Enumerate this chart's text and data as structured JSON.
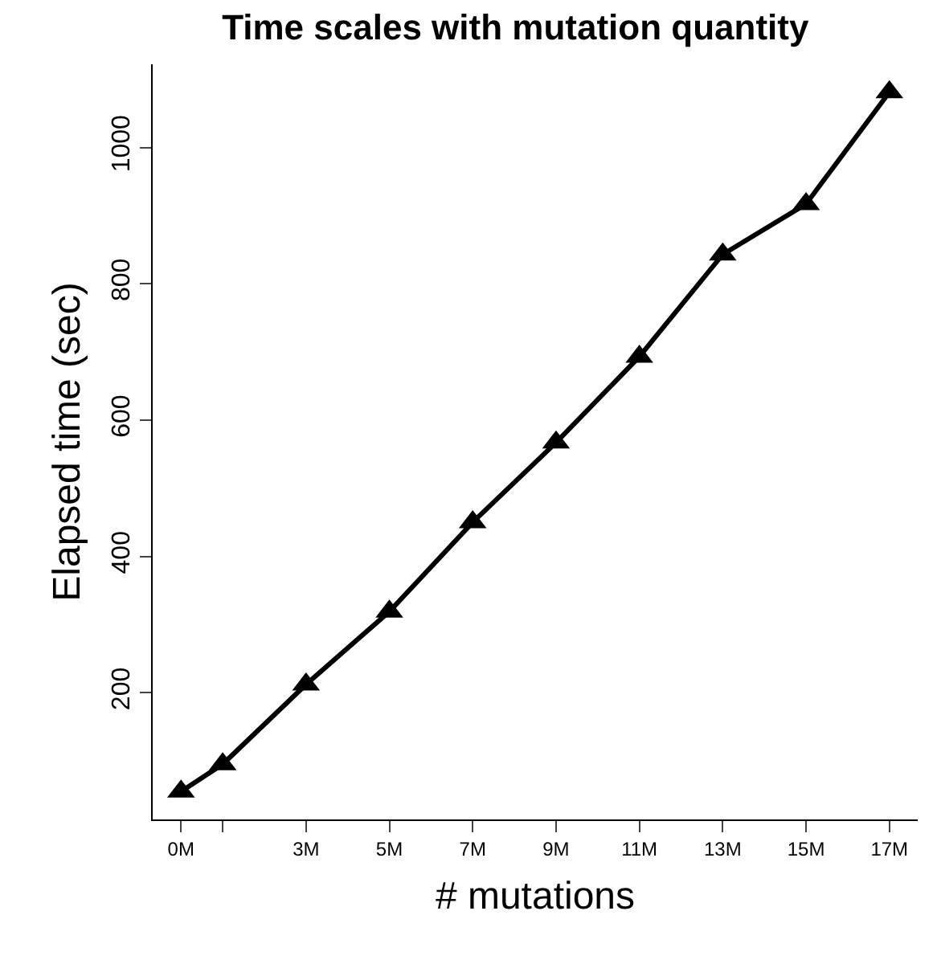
{
  "chart_data": {
    "type": "line",
    "title": "Time scales with mutation quantity",
    "xlabel": "# mutations",
    "ylabel": "Elapsed time (sec)",
    "x": [
      0,
      1,
      3,
      5,
      7,
      9,
      11,
      13,
      15,
      17
    ],
    "series": [
      {
        "color": "#000000",
        "values": [
          55,
          95,
          212,
          319,
          450,
          567,
          693,
          843,
          917,
          1081
        ]
      }
    ],
    "xlim": [
      -0.68,
      17.68
    ],
    "ylim": [
      14,
      1122
    ],
    "xticks": [
      {
        "value": 0,
        "label": "0M"
      },
      {
        "value": 1,
        "label": null
      },
      {
        "value": 3,
        "label": "3M"
      },
      {
        "value": 5,
        "label": "5M"
      },
      {
        "value": 7,
        "label": "7M"
      },
      {
        "value": 9,
        "label": "9M"
      },
      {
        "value": 11,
        "label": "11M"
      },
      {
        "value": 13,
        "label": "13M"
      },
      {
        "value": 15,
        "label": "15M"
      },
      {
        "value": 17,
        "label": "17M"
      }
    ],
    "yticks": [
      200,
      400,
      600,
      800,
      1000
    ],
    "marker": "triangle",
    "line_style": "solid",
    "grid": false
  }
}
